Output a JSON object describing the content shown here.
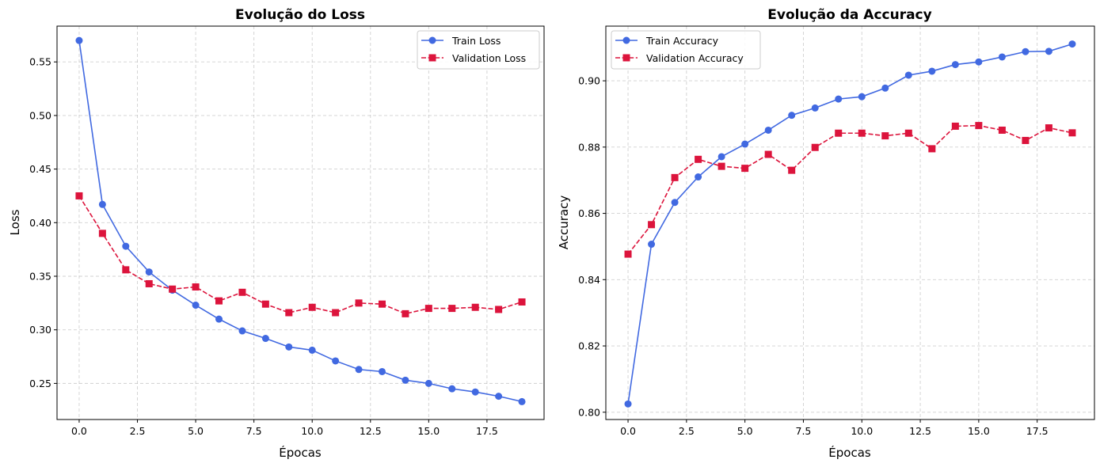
{
  "chart_data": [
    {
      "type": "line",
      "title": "Evolução do Loss",
      "xlabel": "Épocas",
      "ylabel": "Loss",
      "xlim": [
        -0.95,
        19.95
      ],
      "ylim": [
        0.2163,
        0.5834
      ],
      "xticks": [
        "0.0",
        "2.5",
        "5.0",
        "7.5",
        "10.0",
        "12.5",
        "15.0",
        "17.5"
      ],
      "yticks": [
        "0.25",
        "0.30",
        "0.35",
        "0.40",
        "0.45",
        "0.50",
        "0.55"
      ],
      "grid": true,
      "legend_position": "top-right",
      "x": [
        0,
        1,
        2,
        3,
        4,
        5,
        6,
        7,
        8,
        9,
        10,
        11,
        12,
        13,
        14,
        15,
        16,
        17,
        18,
        19
      ],
      "series": [
        {
          "name": "Train Loss",
          "color": "#4169e1",
          "marker": "circle",
          "linestyle": "solid",
          "values": [
            0.57,
            0.417,
            0.378,
            0.354,
            0.337,
            0.323,
            0.31,
            0.299,
            0.292,
            0.284,
            0.281,
            0.271,
            0.263,
            0.261,
            0.253,
            0.25,
            0.245,
            0.242,
            0.238,
            0.233
          ]
        },
        {
          "name": "Validation Loss",
          "color": "#dc143c",
          "marker": "square",
          "linestyle": "dashed",
          "values": [
            0.425,
            0.39,
            0.356,
            0.343,
            0.338,
            0.34,
            0.327,
            0.335,
            0.324,
            0.316,
            0.321,
            0.316,
            0.325,
            0.324,
            0.315,
            0.32,
            0.32,
            0.321,
            0.319,
            0.326
          ]
        }
      ]
    },
    {
      "type": "line",
      "title": "Evolução da Accuracy",
      "xlabel": "Épocas",
      "ylabel": "Accuracy",
      "xlim": [
        -0.95,
        19.95
      ],
      "ylim": [
        0.7978,
        0.9165
      ],
      "xticks": [
        "0.0",
        "2.5",
        "5.0",
        "7.5",
        "10.0",
        "12.5",
        "15.0",
        "17.5"
      ],
      "yticks": [
        "0.80",
        "0.82",
        "0.84",
        "0.86",
        "0.88",
        "0.90"
      ],
      "grid": true,
      "legend_position": "top-left",
      "x": [
        0,
        1,
        2,
        3,
        4,
        5,
        6,
        7,
        8,
        9,
        10,
        11,
        12,
        13,
        14,
        15,
        16,
        17,
        18,
        19
      ],
      "series": [
        {
          "name": "Train Accuracy",
          "color": "#4169e1",
          "marker": "circle",
          "linestyle": "solid",
          "values": [
            0.8025,
            0.8507,
            0.8633,
            0.871,
            0.8771,
            0.8809,
            0.8851,
            0.8896,
            0.8918,
            0.8945,
            0.8952,
            0.8978,
            0.9017,
            0.9029,
            0.9049,
            0.9057,
            0.9072,
            0.9088,
            0.9089,
            0.9111
          ]
        },
        {
          "name": "Validation Accuracy",
          "color": "#dc143c",
          "marker": "square",
          "linestyle": "dashed",
          "values": [
            0.8477,
            0.8566,
            0.8708,
            0.8763,
            0.8742,
            0.8736,
            0.8778,
            0.873,
            0.8799,
            0.8842,
            0.8842,
            0.8834,
            0.8842,
            0.8795,
            0.8863,
            0.8865,
            0.8851,
            0.882,
            0.8858,
            0.8843
          ]
        }
      ]
    }
  ]
}
